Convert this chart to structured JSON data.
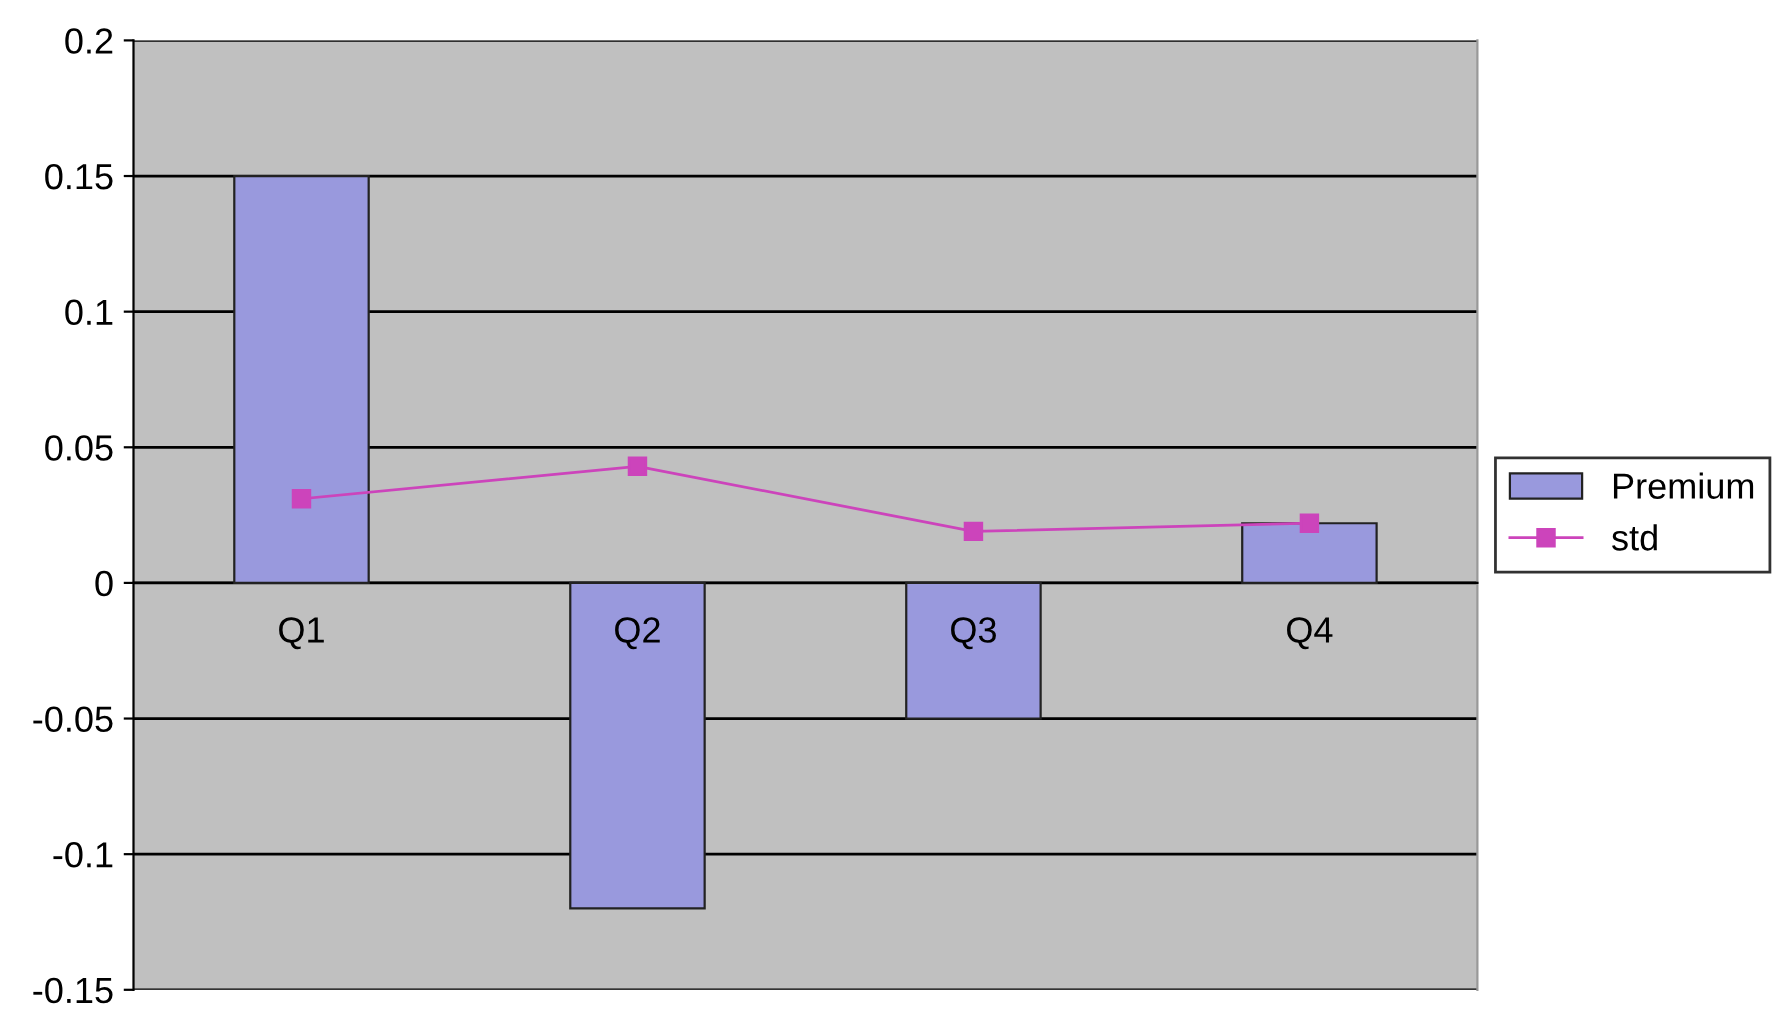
{
  "chart_data": {
    "type": "bar",
    "categories": [
      "Q1",
      "Q2",
      "Q3",
      "Q4"
    ],
    "series": [
      {
        "name": "Premium",
        "color": "#9999dd",
        "values": [
          0.15,
          -0.12,
          -0.05,
          0.022
        ]
      },
      {
        "name": "std",
        "type": "line",
        "color": "#cc44bb",
        "marker": "square",
        "values": [
          0.031,
          0.043,
          0.019,
          0.022
        ]
      }
    ],
    "ylim": [
      -0.15,
      0.2
    ],
    "yticks": [
      -0.15,
      -0.1,
      -0.05,
      0,
      0.05,
      0.1,
      0.15,
      0.2
    ],
    "grid": "y",
    "legend": "right"
  }
}
